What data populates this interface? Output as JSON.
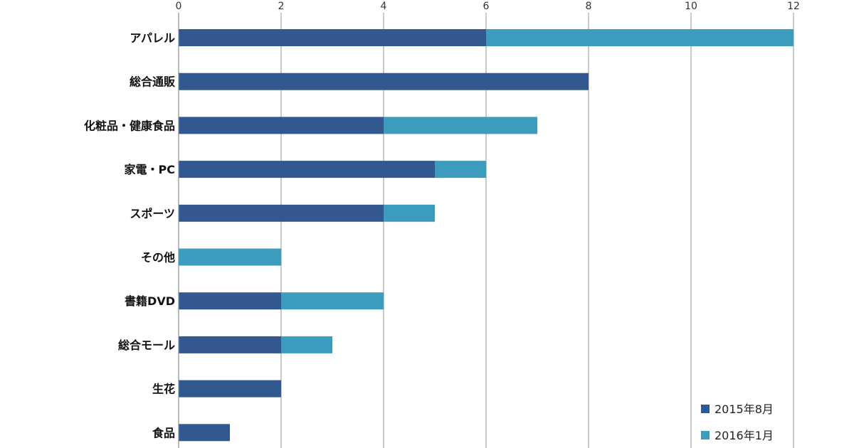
{
  "chart_data": {
    "type": "bar",
    "orientation": "horizontal",
    "stacked": true,
    "categories": [
      "アパレル",
      "総合通販",
      "化粧品・健康食品",
      "家電・PC",
      "スポーツ",
      "その他",
      "書籍DVD",
      "総合モール",
      "生花",
      "食品"
    ],
    "series": [
      {
        "name": "2015年8月",
        "color": "#33578f",
        "values": [
          6,
          8,
          4,
          5,
          4,
          0,
          2,
          2,
          2,
          1
        ]
      },
      {
        "name": "2016年1月",
        "color": "#3d9bbd",
        "values": [
          6,
          0,
          3,
          1,
          1,
          2,
          2,
          1,
          0,
          0
        ]
      }
    ],
    "xlim": [
      0,
      12
    ],
    "x_ticks": [
      0,
      2,
      4,
      6,
      8,
      10,
      12
    ],
    "x_axis_position": "top",
    "grid": true,
    "legend_position": "bottom-right",
    "title": "",
    "xlabel": "",
    "ylabel": ""
  }
}
